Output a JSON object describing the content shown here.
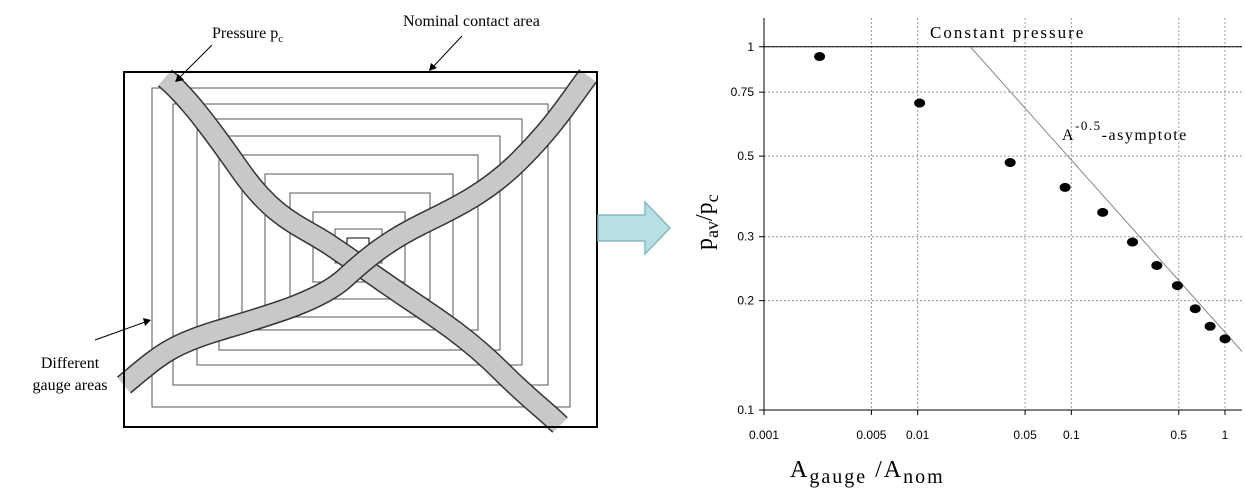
{
  "diagram": {
    "labels": {
      "pressure": {
        "text": "Pressure p",
        "subscript": "c"
      },
      "nominal": "Nominal contact area",
      "gauge": [
        "Different",
        "gauge areas"
      ]
    }
  },
  "chart_data": {
    "type": "scatter",
    "log_x": true,
    "log_y": true,
    "grid": true,
    "color": "#000000",
    "x": [
      0.0023,
      0.0103,
      0.04,
      0.091,
      0.16,
      0.25,
      0.36,
      0.49,
      0.64,
      0.8,
      1.0
    ],
    "values": [
      0.94,
      0.7,
      0.48,
      0.41,
      0.35,
      0.29,
      0.25,
      0.22,
      0.19,
      0.17,
      0.157
    ],
    "lines": [
      {
        "label": {
          "text": "Constant pressure"
        },
        "x": [
          0.001,
          1.29
        ],
        "values": [
          1,
          1
        ],
        "color": "#000000"
      },
      {
        "label": {
          "base": "A",
          "exponent": "-0.5",
          "suffix": "-asymptote"
        },
        "x": [
          0.022,
          1.29
        ],
        "values": [
          1,
          0.145
        ],
        "color": "#888888"
      }
    ],
    "x_label": {
      "base": "A",
      "sub": "gauge",
      "sep": " /A",
      "sub2": "nom"
    },
    "y_label": {
      "base": "p",
      "sub": "av",
      "sep": "/p",
      "sub2": "c"
    },
    "xlim": [
      0.001,
      1.29
    ],
    "ylim": [
      0.1,
      1.2
    ],
    "xticks": [
      0.001,
      0.005,
      0.01,
      0.05,
      0.1,
      0.5,
      1
    ],
    "yticks": [
      0.1,
      0.2,
      0.3,
      0.5,
      0.75,
      1
    ]
  }
}
